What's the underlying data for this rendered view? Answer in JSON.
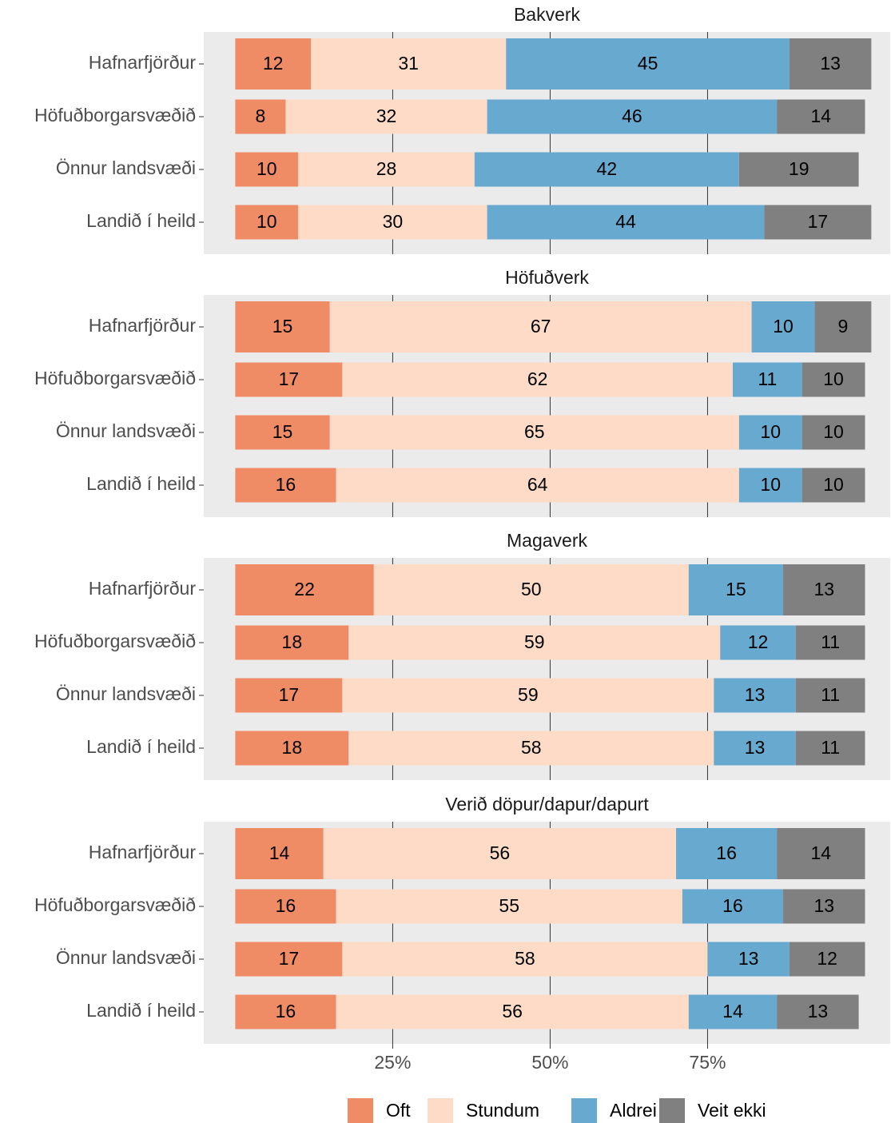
{
  "chart_data": [
    {
      "type": "bar",
      "title": "Bakverk",
      "categories": [
        "Hafnarfjörður",
        "Höfuðborgarsvæðið",
        "Önnur landsvæði",
        "Landið í heild"
      ],
      "series": [
        {
          "name": "Oft",
          "color": "#f08c65",
          "values": [
            12,
            8,
            10,
            10
          ]
        },
        {
          "name": "Stundum",
          "color": "#fddbc7",
          "values": [
            31,
            32,
            28,
            30
          ]
        },
        {
          "name": "Aldrei",
          "color": "#67a9cf",
          "values": [
            45,
            46,
            42,
            44
          ]
        },
        {
          "name": "Veit ekki",
          "color": "#808080",
          "values": [
            13,
            14,
            19,
            17
          ]
        }
      ],
      "xlim": [
        -5,
        104
      ],
      "xticks": [
        {
          "value": 25,
          "label": "25%"
        },
        {
          "value": 50,
          "label": "50%"
        },
        {
          "value": 75,
          "label": "75%"
        }
      ]
    },
    {
      "type": "bar",
      "title": "Höfuðverk",
      "categories": [
        "Hafnarfjörður",
        "Höfuðborgarsvæðið",
        "Önnur landsvæði",
        "Landið í heild"
      ],
      "series": [
        {
          "name": "Oft",
          "color": "#f08c65",
          "values": [
            15,
            17,
            15,
            16
          ]
        },
        {
          "name": "Stundum",
          "color": "#fddbc7",
          "values": [
            67,
            62,
            65,
            64
          ]
        },
        {
          "name": "Aldrei",
          "color": "#67a9cf",
          "values": [
            10,
            11,
            10,
            10
          ]
        },
        {
          "name": "Veit ekki",
          "color": "#808080",
          "values": [
            9,
            10,
            10,
            10
          ]
        }
      ],
      "xlim": [
        -5,
        104
      ],
      "xticks": [
        {
          "value": 25,
          "label": "25%"
        },
        {
          "value": 50,
          "label": "50%"
        },
        {
          "value": 75,
          "label": "75%"
        }
      ]
    },
    {
      "type": "bar",
      "title": "Magaverk",
      "categories": [
        "Hafnarfjörður",
        "Höfuðborgarsvæðið",
        "Önnur landsvæði",
        "Landið í heild"
      ],
      "series": [
        {
          "name": "Oft",
          "color": "#f08c65",
          "values": [
            22,
            18,
            17,
            18
          ]
        },
        {
          "name": "Stundum",
          "color": "#fddbc7",
          "values": [
            50,
            59,
            59,
            58
          ]
        },
        {
          "name": "Aldrei",
          "color": "#67a9cf",
          "values": [
            15,
            12,
            13,
            13
          ]
        },
        {
          "name": "Veit ekki",
          "color": "#808080",
          "values": [
            13,
            11,
            11,
            11
          ]
        }
      ],
      "xlim": [
        -5,
        104
      ],
      "xticks": [
        {
          "value": 25,
          "label": "25%"
        },
        {
          "value": 50,
          "label": "50%"
        },
        {
          "value": 75,
          "label": "75%"
        }
      ]
    },
    {
      "type": "bar",
      "title": "Verið döpur/dapur/dapurt",
      "categories": [
        "Hafnarfjörður",
        "Höfuðborgarsvæðið",
        "Önnur landsvæði",
        "Landið í heild"
      ],
      "series": [
        {
          "name": "Oft",
          "color": "#f08c65",
          "values": [
            14,
            16,
            17,
            16
          ]
        },
        {
          "name": "Stundum",
          "color": "#fddbc7",
          "values": [
            56,
            55,
            58,
            56
          ]
        },
        {
          "name": "Aldrei",
          "color": "#67a9cf",
          "values": [
            16,
            16,
            13,
            14
          ]
        },
        {
          "name": "Veit ekki",
          "color": "#808080",
          "values": [
            14,
            13,
            12,
            13
          ]
        }
      ],
      "xlim": [
        -5,
        104
      ],
      "xticks": [
        {
          "value": 25,
          "label": "25%"
        },
        {
          "value": 50,
          "label": "50%"
        },
        {
          "value": 75,
          "label": "75%"
        }
      ]
    }
  ]
}
